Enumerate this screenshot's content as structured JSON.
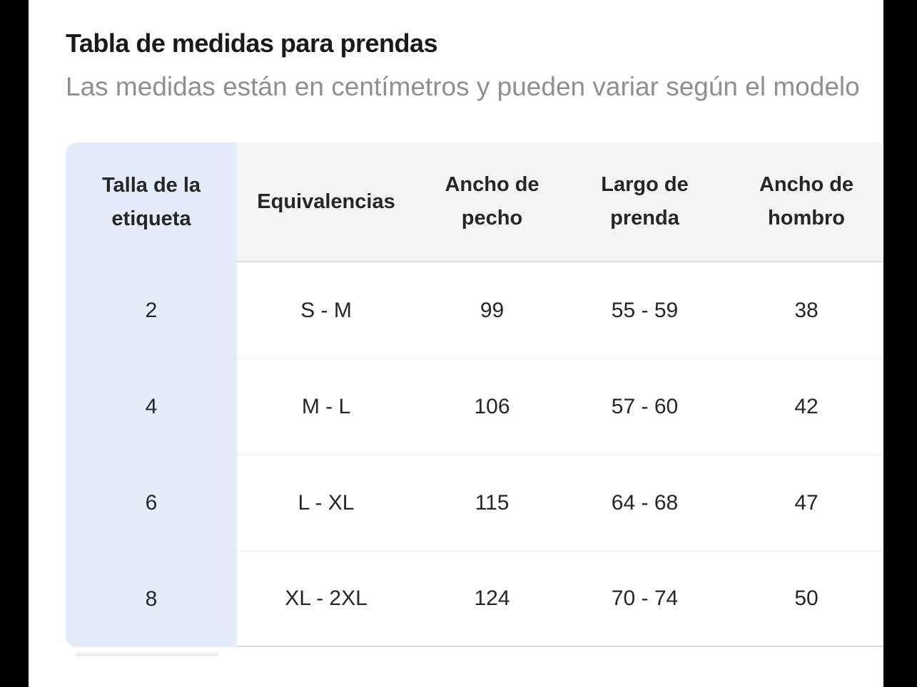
{
  "page": {
    "title": "Tabla de medidas para prendas",
    "subtitle": "Las medidas están en centímetros y pueden variar según el modelo"
  },
  "size_chart": {
    "columns": [
      "Talla de la etiqueta",
      "Equivalencias",
      "Ancho de pecho",
      "Largo de prenda",
      "Ancho de hombro"
    ],
    "rows": [
      [
        "2",
        "S - M",
        "99",
        "55 - 59",
        "38"
      ],
      [
        "4",
        "M - L",
        "106",
        "57 - 60",
        "42"
      ],
      [
        "6",
        "L - XL",
        "115",
        "64 - 68",
        "47"
      ],
      [
        "8",
        "XL - 2XL",
        "124",
        "70 - 74",
        "50"
      ]
    ]
  },
  "colors": {
    "highlight_column_bg": "#e4ecfa",
    "header_bg": "#f5f5f5",
    "row_border": "#ebebeb",
    "strong_border": "#dcdcdc",
    "title_text": "#1a1a1a",
    "subtitle_text": "#8f8f8f",
    "cell_text": "#262626",
    "letterbox": "#000000",
    "scrollbar_thumb": "#ededed"
  }
}
